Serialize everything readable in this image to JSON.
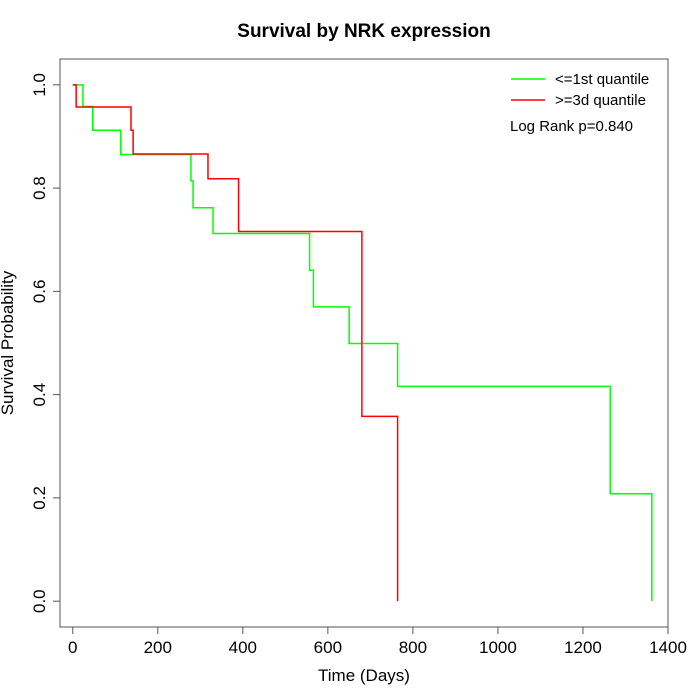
{
  "chart_data": {
    "type": "line",
    "title": "Survival by NRK expression",
    "xlabel": "Time (Days)",
    "ylabel": "Survival Probability",
    "xlim": [
      -30,
      1400
    ],
    "ylim": [
      -0.05,
      1.05
    ],
    "xticks": [
      0,
      200,
      400,
      600,
      800,
      1000,
      1200,
      1400
    ],
    "yticks": [
      0.0,
      0.2,
      0.4,
      0.6,
      0.8,
      1.0
    ],
    "xtick_labels": [
      "0",
      "200",
      "400",
      "600",
      "800",
      "1000",
      "1200",
      "1400"
    ],
    "ytick_labels": [
      "0.0",
      "0.2",
      "0.4",
      "0.6",
      "0.8",
      "1.0"
    ],
    "grid": false,
    "legend_position": "top-right",
    "annotation": "Log Rank p=0.840",
    "series": [
      {
        "name": "<=1st quantile",
        "color": "#00ff00",
        "step": true,
        "x": [
          0,
          24,
          47,
          113,
          278,
          283,
          330,
          557,
          566,
          650,
          764,
          1264,
          1362
        ],
        "y": [
          1.0,
          0.958,
          0.912,
          0.865,
          0.814,
          0.762,
          0.712,
          0.641,
          0.57,
          0.499,
          0.416,
          0.208,
          0.0
        ]
      },
      {
        "name": ">=3d quantile",
        "color": "#ff0000",
        "step": true,
        "x": [
          0,
          8,
          137,
          142,
          318,
          390,
          680,
          764
        ],
        "y": [
          1.0,
          0.957,
          0.912,
          0.866,
          0.818,
          0.716,
          0.358,
          0.0
        ]
      }
    ]
  }
}
